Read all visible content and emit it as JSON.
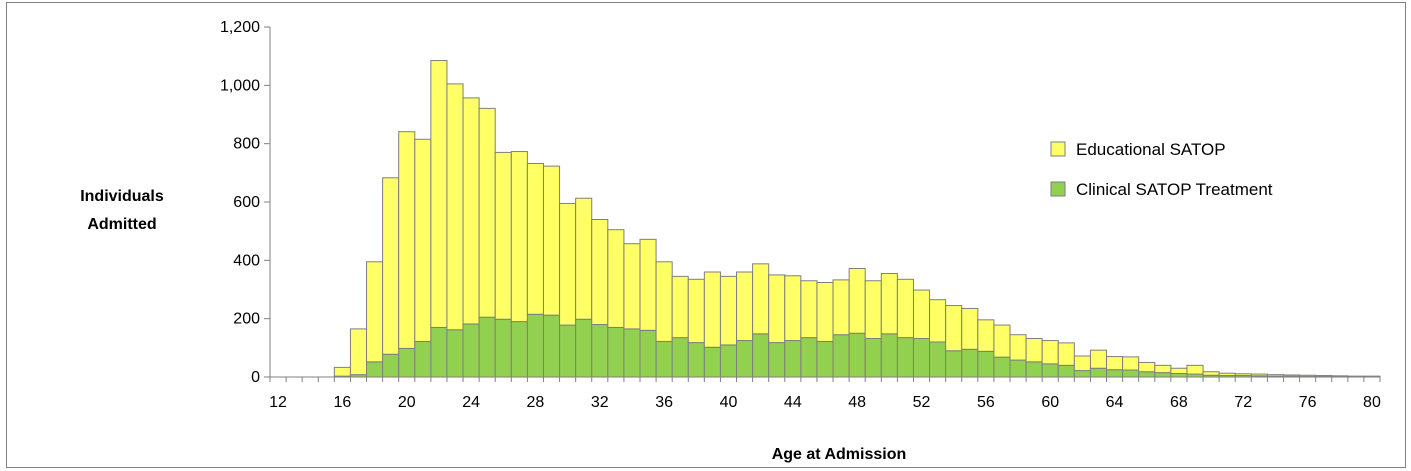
{
  "chart_data": {
    "type": "bar",
    "stacked": true,
    "title": "",
    "xlabel": "Age at Admission",
    "ylabel": "Individuals Admitted",
    "ylim": [
      0,
      1200
    ],
    "yticks": [
      0,
      200,
      400,
      600,
      800,
      1000,
      1200
    ],
    "ytick_labels": [
      "0",
      "200",
      "400",
      "600",
      "800",
      "1,000",
      "1,200"
    ],
    "xtick_labels": [
      "12",
      "16",
      "20",
      "24",
      "28",
      "32",
      "36",
      "40",
      "44",
      "48",
      "52",
      "56",
      "60",
      "64",
      "68",
      "72",
      "76",
      "80"
    ],
    "grid": false,
    "legend_position": "right",
    "x": [
      12,
      13,
      14,
      15,
      16,
      17,
      18,
      19,
      20,
      21,
      22,
      23,
      24,
      25,
      26,
      27,
      28,
      29,
      30,
      31,
      32,
      33,
      34,
      35,
      36,
      37,
      38,
      39,
      40,
      41,
      42,
      43,
      44,
      45,
      46,
      47,
      48,
      49,
      50,
      51,
      52,
      53,
      54,
      55,
      56,
      57,
      58,
      59,
      60,
      61,
      62,
      63,
      64,
      65,
      66,
      67,
      68,
      69,
      70,
      71,
      72,
      73,
      74,
      75,
      76,
      77,
      78,
      79,
      80
    ],
    "series": [
      {
        "name": "Clinical SATOP Treatment",
        "color": "#92D050",
        "values": [
          0,
          0,
          0,
          0,
          3,
          8,
          52,
          78,
          98,
          122,
          170,
          162,
          182,
          205,
          198,
          190,
          215,
          212,
          178,
          198,
          180,
          170,
          165,
          160,
          122,
          135,
          118,
          102,
          110,
          125,
          148,
          118,
          125,
          135,
          122,
          145,
          150,
          132,
          148,
          135,
          132,
          120,
          90,
          95,
          88,
          68,
          58,
          52,
          45,
          40,
          22,
          30,
          25,
          24,
          18,
          15,
          12,
          10,
          6,
          5,
          5,
          4,
          3,
          3,
          2,
          2,
          1,
          1,
          1
        ]
      },
      {
        "name": "Educational SATOP",
        "color": "#FFFF66",
        "values": [
          0,
          0,
          0,
          0,
          30,
          157,
          343,
          605,
          743,
          693,
          915,
          843,
          775,
          716,
          572,
          583,
          517,
          511,
          417,
          415,
          360,
          335,
          292,
          312,
          273,
          210,
          217,
          258,
          235,
          235,
          240,
          232,
          222,
          195,
          202,
          188,
          222,
          198,
          207,
          200,
          166,
          145,
          155,
          140,
          108,
          110,
          87,
          80,
          80,
          77,
          50,
          62,
          45,
          45,
          32,
          25,
          18,
          30,
          12,
          8,
          6,
          6,
          5,
          4,
          4,
          3,
          3,
          2,
          2
        ]
      }
    ]
  }
}
